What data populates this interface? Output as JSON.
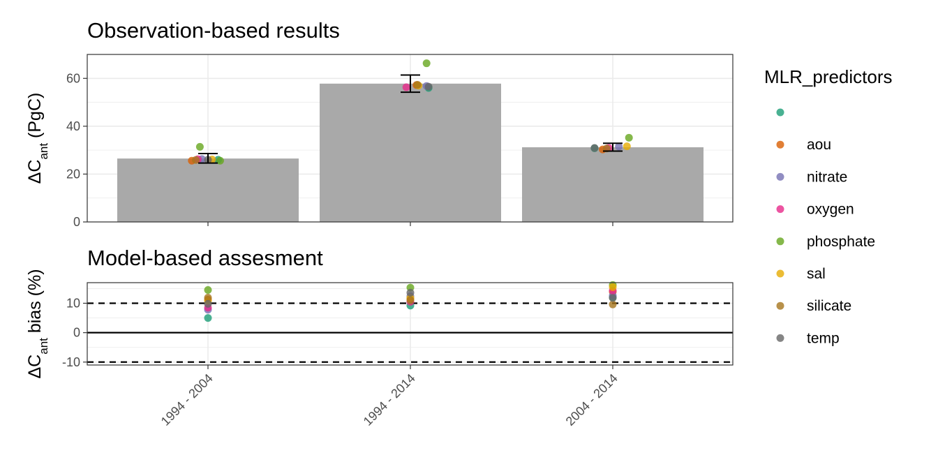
{
  "chart_data": [
    {
      "type": "bar",
      "title": "Observation-based results",
      "ylabel": {
        "base": "ΔC",
        "sub": "ant",
        "suffix": " (PgC)"
      },
      "ylim": [
        0,
        70
      ],
      "yticks": [
        "0",
        "20",
        "40",
        "60"
      ],
      "categories": [
        "1994 - 2004",
        "1994 - 2014",
        "2004 - 2014"
      ],
      "values": [
        26.5,
        57.8,
        31.2
      ],
      "errorbars": [
        {
          "low": 24.6,
          "high": 28.6
        },
        {
          "low": 54.2,
          "high": 61.4
        },
        {
          "low": 29.6,
          "high": 32.9
        }
      ],
      "points": [
        {
          "category": "1994 - 2004",
          "series": "",
          "y": 26.0,
          "dx": 0.05
        },
        {
          "category": "1994 - 2004",
          "series": "aou",
          "y": 25.6,
          "dx": -0.08
        },
        {
          "category": "1994 - 2004",
          "series": "nitrate",
          "y": 26.3,
          "dx": -0.03
        },
        {
          "category": "1994 - 2004",
          "series": "oxygen",
          "y": 26.2,
          "dx": -0.05
        },
        {
          "category": "1994 - 2004",
          "series": "phosphate",
          "y": 31.4,
          "dx": -0.04
        },
        {
          "category": "1994 - 2004",
          "series": "phosphate",
          "y": 25.6,
          "dx": 0.06
        },
        {
          "category": "1994 - 2004",
          "series": "sal",
          "y": 26.1,
          "dx": 0.02
        },
        {
          "category": "1994 - 2004",
          "series": "silicate",
          "y": 25.9,
          "dx": -0.06
        },
        {
          "category": "1994 - 2004",
          "series": "temp",
          "y": 26.0,
          "dx": 0.0
        },
        {
          "category": "1994 - 2014",
          "series": "",
          "y": 56.0,
          "dx": 0.09
        },
        {
          "category": "1994 - 2014",
          "series": "aou",
          "y": 57.2,
          "dx": 0.03
        },
        {
          "category": "1994 - 2014",
          "series": "nitrate",
          "y": 56.8,
          "dx": 0.08
        },
        {
          "category": "1994 - 2014",
          "series": "oxygen",
          "y": 56.3,
          "dx": -0.02
        },
        {
          "category": "1994 - 2014",
          "series": "phosphate",
          "y": 66.3,
          "dx": 0.08
        },
        {
          "category": "1994 - 2014",
          "series": "sal",
          "y": 57.0,
          "dx": 0.04
        },
        {
          "category": "1994 - 2014",
          "series": "silicate",
          "y": 57.3,
          "dx": 0.035
        },
        {
          "category": "1994 - 2014",
          "series": "temp",
          "y": 56.5,
          "dx": 0.09
        },
        {
          "category": "2004 - 2014",
          "series": "",
          "y": 30.8,
          "dx": -0.09
        },
        {
          "category": "2004 - 2014",
          "series": "aou",
          "y": 30.3,
          "dx": -0.05
        },
        {
          "category": "2004 - 2014",
          "series": "nitrate",
          "y": 31.5,
          "dx": 0.03
        },
        {
          "category": "2004 - 2014",
          "series": "oxygen",
          "y": 30.9,
          "dx": -0.02
        },
        {
          "category": "2004 - 2014",
          "series": "phosphate",
          "y": 35.2,
          "dx": 0.08
        },
        {
          "category": "2004 - 2014",
          "series": "sal",
          "y": 31.6,
          "dx": 0.07
        },
        {
          "category": "2004 - 2014",
          "series": "silicate",
          "y": 30.7,
          "dx": -0.03
        },
        {
          "category": "2004 - 2014",
          "series": "temp",
          "y": 30.9,
          "dx": -0.09
        }
      ],
      "grid": true
    },
    {
      "type": "scatter",
      "title": "Model-based assesment",
      "ylabel": {
        "base": "ΔC",
        "sub": "ant",
        "suffix": " bias (%)"
      },
      "ylim": [
        -11,
        17
      ],
      "yticks": [
        "-10",
        "0",
        "10"
      ],
      "categories": [
        "1994 - 2004",
        "1994 - 2014",
        "2004 - 2014"
      ],
      "hlines": [
        {
          "y": 10,
          "style": "dashed"
        },
        {
          "y": 0,
          "style": "solid"
        },
        {
          "y": -10,
          "style": "dashed"
        }
      ],
      "points": [
        {
          "category": "1994 - 2004",
          "series": "",
          "y": 5.0
        },
        {
          "category": "1994 - 2004",
          "series": "aou",
          "y": 11.2
        },
        {
          "category": "1994 - 2004",
          "series": "nitrate",
          "y": 7.8
        },
        {
          "category": "1994 - 2004",
          "series": "oxygen",
          "y": 8.5
        },
        {
          "category": "1994 - 2004",
          "series": "phosphate",
          "y": 14.5
        },
        {
          "category": "1994 - 2004",
          "series": "sal",
          "y": 10.8
        },
        {
          "category": "1994 - 2004",
          "series": "silicate",
          "y": 11.9
        },
        {
          "category": "1994 - 2004",
          "series": "temp",
          "y": 9.8
        },
        {
          "category": "1994 - 2014",
          "series": "",
          "y": 9.2
        },
        {
          "category": "1994 - 2014",
          "series": "aou",
          "y": 11.5
        },
        {
          "category": "1994 - 2014",
          "series": "nitrate",
          "y": 12.4
        },
        {
          "category": "1994 - 2014",
          "series": "oxygen",
          "y": 10.5
        },
        {
          "category": "1994 - 2014",
          "series": "phosphate",
          "y": 15.3
        },
        {
          "category": "1994 - 2014",
          "series": "sal",
          "y": 11.8
        },
        {
          "category": "1994 - 2014",
          "series": "silicate",
          "y": 11.0
        },
        {
          "category": "1994 - 2014",
          "series": "temp",
          "y": 13.6
        },
        {
          "category": "2004 - 2014",
          "series": "",
          "y": 12.0
        },
        {
          "category": "2004 - 2014",
          "series": "aou",
          "y": 13.9
        },
        {
          "category": "2004 - 2014",
          "series": "nitrate",
          "y": 12.6
        },
        {
          "category": "2004 - 2014",
          "series": "oxygen",
          "y": 14.3
        },
        {
          "category": "2004 - 2014",
          "series": "phosphate",
          "y": 16.2
        },
        {
          "category": "2004 - 2014",
          "series": "sal",
          "y": 15.5
        },
        {
          "category": "2004 - 2014",
          "series": "silicate",
          "y": 9.6
        },
        {
          "category": "2004 - 2014",
          "series": "temp",
          "y": 11.8
        }
      ],
      "grid": true
    }
  ],
  "legend": {
    "title": "MLR_predictors",
    "placement": "right",
    "items": [
      {
        "label": "",
        "color": "#1b9e77"
      },
      {
        "label": "aou",
        "color": "#d95f02"
      },
      {
        "label": "nitrate",
        "color": "#7570b3"
      },
      {
        "label": "oxygen",
        "color": "#e7298a"
      },
      {
        "label": "phosphate",
        "color": "#66a61e"
      },
      {
        "label": "sal",
        "color": "#e6ab02"
      },
      {
        "label": "silicate",
        "color": "#a6761d"
      },
      {
        "label": "temp",
        "color": "#666666"
      }
    ]
  },
  "colors": {
    "bar": "#a9a9a9",
    "grid": "#ebebeb",
    "panel_border": "#333333",
    "tick_text": "#4d4d4d"
  }
}
